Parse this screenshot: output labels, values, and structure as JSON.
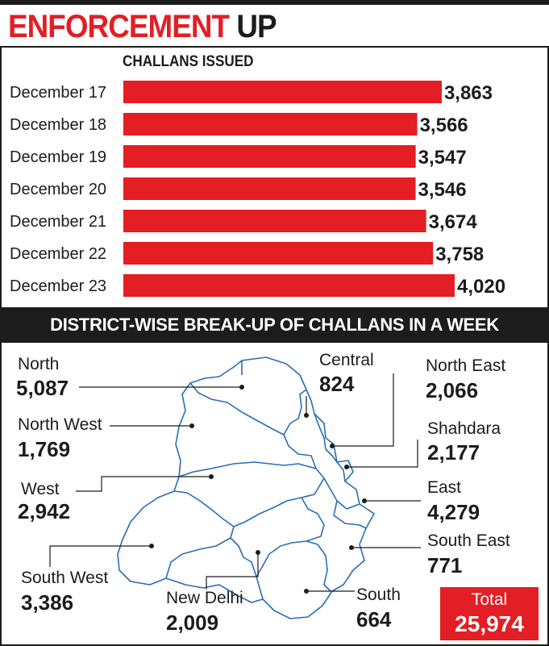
{
  "header": {
    "title_red": "ENFORCEMENT",
    "title_black": "UP"
  },
  "colors": {
    "accent": "#e31e24",
    "ink": "#1c1c1c",
    "banner_bg": "#1c1c1c",
    "map_stroke": "#2a6db5"
  },
  "chart_data": {
    "type": "bar",
    "orientation": "horizontal",
    "title": "CHALLANS ISSUED",
    "categories": [
      "December 17",
      "December 18",
      "December 19",
      "December 20",
      "December 21",
      "December 22",
      "December 23"
    ],
    "values": [
      3863,
      3566,
      3547,
      3546,
      3674,
      3758,
      4020
    ],
    "value_labels": [
      "3,863",
      "3,566",
      "3,547",
      "3,546",
      "3,674",
      "3,758",
      "4,020"
    ],
    "xlim": [
      0,
      4020
    ]
  },
  "banner": {
    "text": "DISTRICT-WISE BREAK-UP OF CHALLANS IN A WEEK"
  },
  "districts": [
    {
      "name": "North",
      "value": "5,087"
    },
    {
      "name": "Central",
      "value": "824"
    },
    {
      "name": "North East",
      "value": "2,066"
    },
    {
      "name": "North West",
      "value": "1,769"
    },
    {
      "name": "Shahdara",
      "value": "2,177"
    },
    {
      "name": "West",
      "value": "2,942"
    },
    {
      "name": "East",
      "value": "4,279"
    },
    {
      "name": "South East",
      "value": "771"
    },
    {
      "name": "South West",
      "value": "3,386"
    },
    {
      "name": "New Delhi",
      "value": "2,009"
    },
    {
      "name": "South",
      "value": "664"
    }
  ],
  "total": {
    "label": "Total",
    "value": "25,974"
  }
}
